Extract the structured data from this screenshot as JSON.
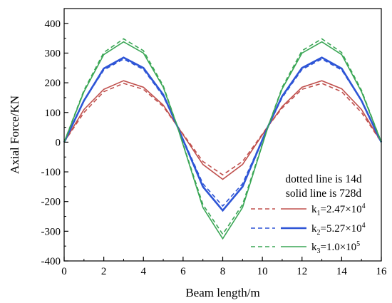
{
  "chart_data": {
    "type": "line",
    "xlabel": "Beam length/m",
    "ylabel": "Axial Force/KN",
    "xlim": [
      0,
      16
    ],
    "ylim": [
      -400,
      450
    ],
    "x_ticks": [
      0,
      2,
      4,
      6,
      8,
      10,
      12,
      14,
      16
    ],
    "y_ticks": [
      -400,
      -300,
      -200,
      -100,
      0,
      100,
      200,
      300,
      400
    ],
    "grid": false,
    "legend_position": "right",
    "annotations": [
      "dotted line is 14d",
      "solid line is 728d"
    ],
    "x": [
      0,
      1,
      2,
      3,
      4,
      5,
      5.7,
      7,
      8,
      9,
      10.3,
      11,
      12,
      13,
      14,
      15,
      16
    ],
    "series": [
      {
        "name": "k1=2.47×10^4",
        "label_main": "k",
        "label_sub": "1",
        "label_mid": "=2.47×10",
        "label_sup": "4",
        "color": "#c0504d",
        "solid": [
          0,
          110,
          178,
          207,
          185,
          125,
          55,
          -75,
          -125,
          -75,
          55,
          120,
          185,
          207,
          180,
          110,
          0
        ],
        "dotted": [
          0,
          100,
          170,
          198,
          178,
          120,
          55,
          -65,
          -110,
          -65,
          55,
          115,
          178,
          198,
          170,
          100,
          0
        ]
      },
      {
        "name": "k2=5.27×10^4",
        "label_main": "k",
        "label_sub": "2",
        "label_mid": "=5.27×10",
        "label_sup": "4",
        "color": "#2e55d6",
        "solid": [
          0,
          140,
          248,
          285,
          250,
          160,
          55,
          -150,
          -230,
          -150,
          55,
          155,
          250,
          285,
          248,
          140,
          0
        ],
        "dotted": [
          0,
          140,
          243,
          280,
          245,
          155,
          55,
          -140,
          -215,
          -140,
          55,
          150,
          245,
          280,
          243,
          140,
          0
        ]
      },
      {
        "name": "k3=1.0×10^5",
        "label_main": "k",
        "label_sub": "3",
        "label_mid": "=1.0×10",
        "label_sup": "5",
        "color": "#3aa655",
        "solid": [
          0,
          170,
          295,
          338,
          300,
          185,
          55,
          -220,
          -325,
          -220,
          55,
          180,
          300,
          338,
          295,
          170,
          0
        ],
        "dotted": [
          0,
          175,
          302,
          348,
          308,
          190,
          55,
          -210,
          -310,
          -210,
          55,
          185,
          308,
          348,
          302,
          175,
          0
        ]
      }
    ]
  }
}
